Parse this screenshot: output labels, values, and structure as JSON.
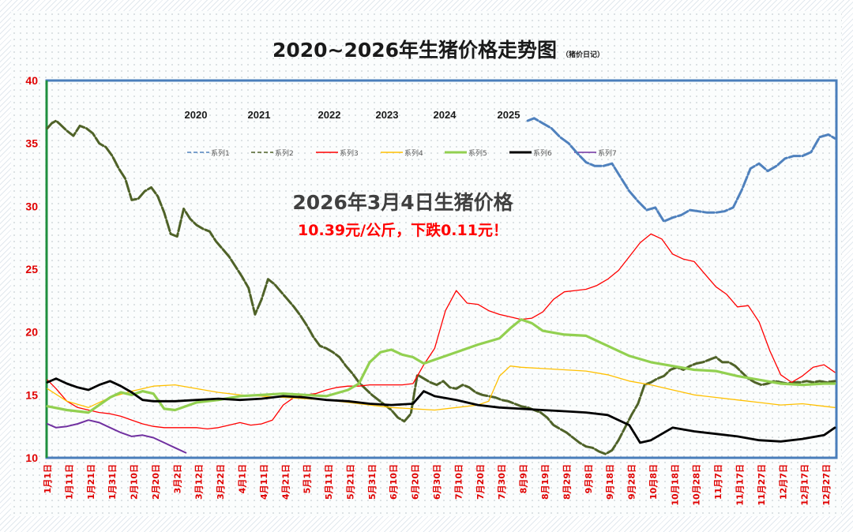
{
  "chart_data": {
    "type": "line",
    "title": "2020~2026年生猪价格走势图",
    "subtitle": "（猪价日记）",
    "annotation": {
      "headline": "2026年3月4日生猪价格",
      "detail": "10.39元/公斤，下跌0.11元！"
    },
    "year_labels": [
      "2020",
      "2021",
      "2022",
      "2023",
      "2024",
      "2025"
    ],
    "ylim": [
      10,
      40
    ],
    "yticks": [
      10,
      15,
      20,
      25,
      30,
      35,
      40
    ],
    "x_ticks": [
      "1月1日",
      "1月11日",
      "1月21日",
      "1月31日",
      "2月10日",
      "2月20日",
      "3月2日",
      "3月12日",
      "3月22日",
      "4月1日",
      "4月11日",
      "4月21日",
      "5月1日",
      "5月11日",
      "5月21日",
      "5月31日",
      "6月10日",
      "6月20日",
      "6月30日",
      "7月10日",
      "7月20日",
      "7月30日",
      "8月9日",
      "8月19日",
      "8月29日",
      "9月8日",
      "9月18日",
      "9月28日",
      "10月8日",
      "10月18日",
      "10月28日",
      "11月7日",
      "11月17日",
      "11月27日",
      "12月7日",
      "12月17日",
      "12月27日"
    ],
    "x_day_range": [
      1,
      365
    ],
    "grid": false,
    "legend_position": "top",
    "series": [
      {
        "name": "系列1",
        "color": "#4f81bd",
        "style": "dashed",
        "x": [
          223,
          226,
          230,
          234,
          238,
          242,
          246,
          250,
          254,
          258,
          262,
          266,
          270,
          274,
          278,
          282,
          286,
          290,
          294,
          298,
          302,
          306,
          310,
          314,
          318,
          322,
          326,
          330,
          334,
          338,
          342,
          346,
          350,
          354,
          358,
          362,
          365
        ],
        "y": [
          36.8,
          37.0,
          36.6,
          36.2,
          35.5,
          35.0,
          34.2,
          33.5,
          33.2,
          33.2,
          33.4,
          32.3,
          31.2,
          30.4,
          29.7,
          29.9,
          28.8,
          29.1,
          29.3,
          29.7,
          29.6,
          29.5,
          29.5,
          29.6,
          29.9,
          31.3,
          33.0,
          33.4,
          32.8,
          33.2,
          33.8,
          34.0,
          34.0,
          34.3,
          35.5,
          35.7,
          35.4
        ]
      },
      {
        "name": "系列2",
        "color": "#4f6228",
        "style": "dashed",
        "x": [
          1,
          3,
          5,
          7,
          10,
          13,
          16,
          19,
          22,
          25,
          28,
          31,
          34,
          37,
          40,
          43,
          46,
          49,
          52,
          55,
          58,
          61,
          64,
          67,
          70,
          73,
          76,
          79,
          82,
          85,
          88,
          91,
          94,
          97,
          100,
          103,
          106,
          109,
          112,
          115,
          118,
          121,
          124,
          127,
          130,
          133,
          136,
          139,
          142,
          145,
          148,
          151,
          154,
          157,
          160,
          163,
          166,
          169,
          172,
          175,
          178,
          181,
          184,
          187,
          190,
          193,
          196,
          199,
          202,
          205,
          208,
          211,
          214,
          217,
          220,
          223,
          226,
          229,
          232,
          235,
          238,
          241,
          244,
          247,
          250,
          253,
          256,
          259,
          262,
          265,
          268,
          271,
          274,
          277,
          280,
          283,
          286,
          289,
          292,
          295,
          298,
          301,
          304,
          307,
          310,
          313,
          316,
          319,
          322,
          325,
          328,
          331,
          334,
          337,
          340,
          343,
          346,
          349,
          352,
          355,
          358,
          361,
          365
        ],
        "y": [
          36.2,
          36.6,
          36.8,
          36.5,
          36.0,
          35.6,
          36.4,
          36.2,
          35.8,
          35.0,
          34.7,
          34.0,
          33.0,
          32.2,
          30.5,
          30.6,
          31.2,
          31.5,
          30.8,
          29.5,
          27.8,
          27.6,
          29.8,
          29.0,
          28.5,
          28.2,
          28.0,
          27.2,
          26.6,
          26.0,
          25.2,
          24.4,
          23.5,
          21.4,
          22.6,
          24.2,
          23.8,
          23.2,
          22.6,
          22.0,
          21.3,
          20.5,
          19.6,
          18.9,
          18.7,
          18.4,
          18.0,
          17.3,
          16.7,
          16.0,
          15.5,
          15.0,
          14.6,
          14.2,
          13.8,
          13.2,
          12.9,
          13.5,
          16.6,
          16.3,
          16.0,
          15.8,
          16.1,
          15.6,
          15.5,
          15.8,
          15.6,
          15.2,
          15.0,
          14.9,
          14.8,
          14.6,
          14.5,
          14.3,
          14.1,
          14.0,
          13.8,
          13.6,
          13.2,
          12.6,
          12.3,
          12.0,
          11.6,
          11.2,
          10.9,
          10.8,
          10.5,
          10.3,
          10.6,
          11.4,
          12.4,
          13.4,
          14.3,
          15.8,
          16.0,
          16.3,
          16.5,
          17.0,
          17.2,
          17.0,
          17.3,
          17.5,
          17.6,
          17.8,
          18.0,
          17.6,
          17.6,
          17.3,
          16.8,
          16.3,
          16.0,
          15.8,
          15.9,
          16.1,
          16.0,
          15.9,
          16.0,
          16.0,
          16.1,
          16.0,
          16.1,
          16.0,
          16.1
        ]
      },
      {
        "name": "系列3",
        "color": "#ff0000",
        "style": "solid",
        "x": [
          1,
          5,
          10,
          15,
          20,
          25,
          30,
          35,
          40,
          45,
          50,
          55,
          60,
          65,
          70,
          75,
          80,
          85,
          90,
          95,
          100,
          105,
          110,
          115,
          120,
          125,
          130,
          135,
          140,
          145,
          150,
          155,
          160,
          165,
          170,
          175,
          180,
          185,
          190,
          195,
          200,
          205,
          210,
          215,
          220,
          225,
          230,
          235,
          240,
          245,
          250,
          255,
          260,
          265,
          270,
          275,
          280,
          285,
          290,
          295,
          300,
          305,
          310,
          315,
          320,
          325,
          330,
          335,
          340,
          345,
          350,
          355,
          360,
          365
        ],
        "y": [
          16.2,
          15.5,
          14.5,
          14.0,
          13.8,
          13.6,
          13.5,
          13.3,
          13.0,
          12.7,
          12.5,
          12.4,
          12.4,
          12.4,
          12.4,
          12.3,
          12.4,
          12.6,
          12.8,
          12.6,
          12.7,
          13.0,
          14.2,
          14.8,
          15.0,
          15.1,
          15.4,
          15.6,
          15.7,
          15.7,
          15.8,
          15.8,
          15.8,
          15.8,
          15.9,
          17.4,
          18.7,
          21.7,
          23.3,
          22.3,
          22.2,
          21.7,
          21.4,
          21.2,
          21.0,
          21.1,
          21.6,
          22.6,
          23.2,
          23.3,
          23.4,
          23.7,
          24.2,
          24.9,
          26.0,
          27.1,
          27.8,
          27.4,
          26.2,
          25.8,
          25.6,
          24.6,
          23.6,
          23.0,
          22.0,
          22.1,
          20.8,
          18.5,
          16.6,
          16.0,
          16.5,
          17.2,
          17.4,
          16.8
        ]
      },
      {
        "name": "系列4",
        "color": "#ffc000",
        "style": "solid",
        "x": [
          1,
          10,
          20,
          30,
          40,
          50,
          60,
          70,
          80,
          90,
          100,
          110,
          120,
          130,
          140,
          150,
          160,
          170,
          180,
          190,
          200,
          205,
          210,
          215,
          220,
          230,
          240,
          250,
          260,
          270,
          280,
          290,
          300,
          310,
          320,
          330,
          340,
          350,
          360,
          365
        ],
        "y": [
          15.5,
          14.5,
          14.0,
          14.8,
          15.3,
          15.7,
          15.8,
          15.5,
          15.2,
          15.0,
          14.9,
          14.8,
          14.7,
          14.6,
          14.4,
          14.2,
          14.0,
          13.9,
          13.8,
          14.0,
          14.2,
          14.5,
          16.5,
          17.3,
          17.2,
          17.1,
          17.0,
          16.9,
          16.6,
          16.1,
          15.8,
          15.4,
          15.0,
          14.8,
          14.6,
          14.4,
          14.2,
          14.3,
          14.1,
          14.0
        ]
      },
      {
        "name": "系列5",
        "color": "#92d050",
        "style": "solid",
        "x": [
          1,
          10,
          20,
          30,
          35,
          40,
          45,
          50,
          55,
          60,
          70,
          80,
          90,
          100,
          110,
          120,
          130,
          140,
          145,
          150,
          155,
          160,
          165,
          170,
          175,
          180,
          190,
          200,
          210,
          215,
          220,
          225,
          230,
          240,
          250,
          260,
          270,
          280,
          290,
          300,
          310,
          320,
          330,
          340,
          350,
          360,
          365
        ],
        "y": [
          14.1,
          13.8,
          13.6,
          14.8,
          15.2,
          15.0,
          15.3,
          15.1,
          13.9,
          13.8,
          14.4,
          14.6,
          14.9,
          15.0,
          15.1,
          15.0,
          14.9,
          15.4,
          15.9,
          17.6,
          18.4,
          18.6,
          18.2,
          18.0,
          17.5,
          17.8,
          18.4,
          19.0,
          19.5,
          20.3,
          21.0,
          20.7,
          20.1,
          19.8,
          19.7,
          18.9,
          18.1,
          17.6,
          17.3,
          17.0,
          16.9,
          16.5,
          16.2,
          15.9,
          15.8,
          15.9,
          15.9
        ]
      },
      {
        "name": "系列6",
        "color": "#000000",
        "style": "solid",
        "x": [
          1,
          5,
          10,
          15,
          20,
          25,
          30,
          35,
          40,
          45,
          50,
          60,
          70,
          80,
          90,
          100,
          110,
          120,
          130,
          140,
          150,
          160,
          170,
          175,
          180,
          190,
          200,
          210,
          220,
          230,
          240,
          250,
          260,
          270,
          275,
          280,
          290,
          300,
          310,
          320,
          330,
          340,
          350,
          360,
          365
        ],
        "y": [
          16.0,
          16.3,
          15.9,
          15.6,
          15.4,
          15.8,
          16.1,
          15.7,
          15.2,
          14.6,
          14.5,
          14.5,
          14.6,
          14.7,
          14.6,
          14.7,
          14.9,
          14.8,
          14.6,
          14.5,
          14.3,
          14.2,
          14.3,
          15.3,
          14.9,
          14.6,
          14.2,
          14.0,
          13.9,
          13.8,
          13.7,
          13.6,
          13.4,
          12.6,
          11.2,
          11.4,
          12.4,
          12.1,
          11.9,
          11.7,
          11.4,
          11.3,
          11.5,
          11.8,
          12.4
        ]
      },
      {
        "name": "系列7",
        "color": "#7030a0",
        "style": "solid",
        "x": [
          1,
          5,
          10,
          15,
          20,
          25,
          30,
          35,
          40,
          45,
          50,
          55,
          60,
          65
        ],
        "y": [
          12.7,
          12.4,
          12.5,
          12.7,
          13.0,
          12.8,
          12.4,
          12.0,
          11.7,
          11.8,
          11.6,
          11.2,
          10.8,
          10.4
        ]
      }
    ]
  }
}
